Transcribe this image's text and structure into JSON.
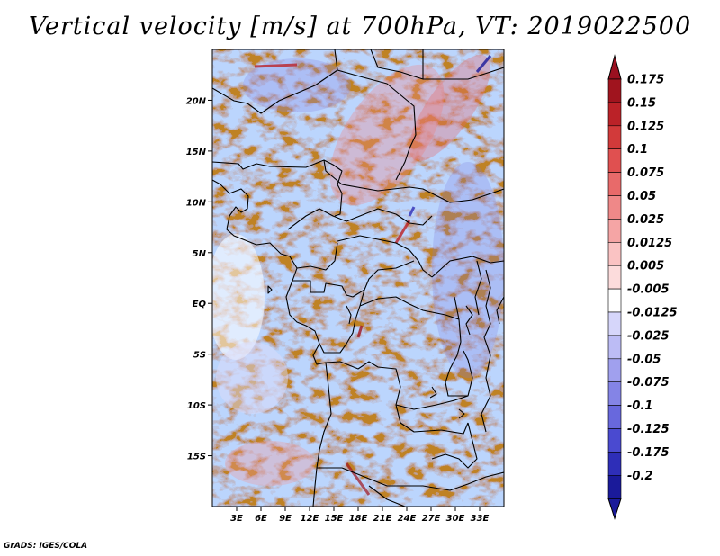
{
  "title": "Vertical velocity [m/s] at 700hPa, VT: 2019022500",
  "credit": "GrADS: IGES/COLA",
  "map": {
    "lon_range": [
      0,
      36
    ],
    "lat_range": [
      -20,
      25
    ],
    "lat_ticks": [
      {
        "lat": 20,
        "label": "20N"
      },
      {
        "lat": 15,
        "label": "15N"
      },
      {
        "lat": 10,
        "label": "10N"
      },
      {
        "lat": 5,
        "label": "5N"
      },
      {
        "lat": 0,
        "label": "EQ"
      },
      {
        "lat": -5,
        "label": "5S"
      },
      {
        "lat": -10,
        "label": "10S"
      },
      {
        "lat": -15,
        "label": "15S"
      }
    ],
    "lon_ticks": [
      {
        "lon": 3,
        "label": "3E"
      },
      {
        "lon": 6,
        "label": "6E"
      },
      {
        "lon": 9,
        "label": "9E"
      },
      {
        "lon": 12,
        "label": "12E"
      },
      {
        "lon": 15,
        "label": "15E"
      },
      {
        "lon": 18,
        "label": "18E"
      },
      {
        "lon": 21,
        "label": "21E"
      },
      {
        "lon": 24,
        "label": "24E"
      },
      {
        "lon": 27,
        "label": "27E"
      },
      {
        "lon": 30,
        "label": "30E"
      },
      {
        "lon": 33,
        "label": "33E"
      }
    ]
  },
  "colorbar": {
    "levels": [
      {
        "label": "0.175",
        "color": "#a0141e"
      },
      {
        "label": "0.15",
        "color": "#bb2228"
      },
      {
        "label": "0.125",
        "color": "#d23a3a"
      },
      {
        "label": "0.1",
        "color": "#e05050"
      },
      {
        "label": "0.075",
        "color": "#e86a6a"
      },
      {
        "label": "0.05",
        "color": "#ef8888"
      },
      {
        "label": "0.025",
        "color": "#f5a5a5"
      },
      {
        "label": "0.0125",
        "color": "#fac3c3"
      },
      {
        "label": "0.005",
        "color": "#fcdcdc"
      },
      {
        "label": "-0.005",
        "color": "#ffffff"
      },
      {
        "label": "-0.0125",
        "color": "#d6d6fa"
      },
      {
        "label": "-0.025",
        "color": "#bcbcf5"
      },
      {
        "label": "-0.05",
        "color": "#a0a0ee"
      },
      {
        "label": "-0.075",
        "color": "#8484e6"
      },
      {
        "label": "-0.1",
        "color": "#6868dd"
      },
      {
        "label": "-0.125",
        "color": "#4a4ad0"
      },
      {
        "label": "-0.175",
        "color": "#2e2eb8"
      },
      {
        "label": "-0.2",
        "color": "#1a1a9a"
      }
    ],
    "top_color": "#9a1020",
    "bottom_color": "#1a1a9a"
  }
}
